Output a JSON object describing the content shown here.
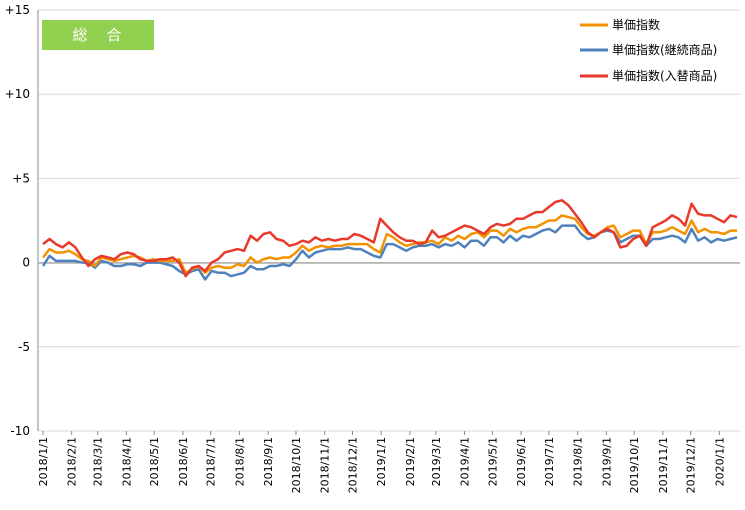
{
  "chart_data": {
    "type": "line",
    "title": "総　合",
    "title_badge_color": "#92d050",
    "ylim": [
      -10,
      15
    ],
    "yticks": [
      {
        "value": 15,
        "label": "+15"
      },
      {
        "value": 10,
        "label": "+10"
      },
      {
        "value": 5,
        "label": "+5"
      },
      {
        "value": 0,
        "label": "0"
      },
      {
        "value": -5,
        "label": "-5"
      },
      {
        "value": -10,
        "label": "-10"
      }
    ],
    "grid": "horizontal",
    "legend_position": "top-right",
    "x_start": "2018-01-01",
    "x_step": "week",
    "x_tick_labels": [
      "2018/1/1",
      "2018/2/1",
      "2018/3/1",
      "2018/4/1",
      "2018/5/1",
      "2018/6/1",
      "2018/7/1",
      "2018/8/1",
      "2018/9/1",
      "2018/10/1",
      "2018/11/1",
      "2018/12/1",
      "2019/1/1",
      "2019/2/1",
      "2019/3/1",
      "2019/4/1",
      "2019/5/1",
      "2019/6/1",
      "2019/7/1",
      "2019/8/1",
      "2019/9/1",
      "2019/10/1",
      "2019/11/1",
      "2019/12/1",
      "2020/1/1"
    ],
    "series": [
      {
        "name": "単価指数",
        "color": "#f39200",
        "values": [
          0.3,
          0.8,
          0.6,
          0.6,
          0.7,
          0.5,
          0.2,
          0.1,
          -0.2,
          0.3,
          0.2,
          0.1,
          0.2,
          0.3,
          0.4,
          0.3,
          0.1,
          0.2,
          0.1,
          0.1,
          0.1,
          0.2,
          -0.6,
          -0.4,
          -0.2,
          -0.6,
          -0.3,
          -0.2,
          -0.3,
          -0.3,
          -0.1,
          -0.2,
          0.3,
          0.0,
          0.2,
          0.3,
          0.2,
          0.3,
          0.3,
          0.6,
          1.0,
          0.7,
          0.9,
          1.0,
          0.9,
          1.0,
          1.0,
          1.1,
          1.1,
          1.1,
          1.1,
          0.8,
          0.6,
          1.7,
          1.5,
          1.2,
          1.0,
          1.1,
          1.2,
          1.2,
          1.3,
          1.1,
          1.5,
          1.3,
          1.6,
          1.4,
          1.7,
          1.8,
          1.5,
          1.9,
          1.9,
          1.6,
          2.0,
          1.8,
          2.0,
          2.1,
          2.1,
          2.3,
          2.5,
          2.5,
          2.8,
          2.7,
          2.6,
          2.1,
          1.7,
          1.6,
          1.8,
          2.1,
          2.2,
          1.5,
          1.7,
          1.9,
          1.9,
          1.1,
          1.8,
          1.8,
          1.9,
          2.1,
          1.9,
          1.7,
          2.5,
          1.8,
          2.0,
          1.8,
          1.8,
          1.7,
          1.9,
          1.9
        ]
      },
      {
        "name": "単価指数(継続商品)",
        "color": "#4f81bd",
        "values": [
          -0.2,
          0.4,
          0.1,
          0.1,
          0.1,
          0.1,
          0.0,
          0.0,
          -0.3,
          0.1,
          0.0,
          -0.2,
          -0.2,
          -0.1,
          -0.1,
          -0.2,
          0.0,
          0.0,
          0.0,
          -0.1,
          -0.2,
          -0.5,
          -0.7,
          -0.5,
          -0.4,
          -1.0,
          -0.5,
          -0.6,
          -0.6,
          -0.8,
          -0.7,
          -0.6,
          -0.2,
          -0.4,
          -0.4,
          -0.2,
          -0.2,
          -0.1,
          -0.2,
          0.2,
          0.7,
          0.3,
          0.6,
          0.7,
          0.8,
          0.8,
          0.8,
          0.9,
          0.8,
          0.8,
          0.6,
          0.4,
          0.3,
          1.1,
          1.1,
          0.9,
          0.7,
          0.9,
          1.0,
          1.0,
          1.1,
          0.9,
          1.1,
          1.0,
          1.2,
          0.9,
          1.3,
          1.3,
          1.0,
          1.5,
          1.5,
          1.2,
          1.6,
          1.3,
          1.6,
          1.5,
          1.7,
          1.9,
          2.0,
          1.8,
          2.2,
          2.2,
          2.2,
          1.7,
          1.4,
          1.5,
          1.8,
          1.9,
          1.8,
          1.2,
          1.4,
          1.6,
          1.6,
          1.0,
          1.4,
          1.4,
          1.5,
          1.6,
          1.5,
          1.2,
          2.0,
          1.3,
          1.5,
          1.2,
          1.4,
          1.3,
          1.4,
          1.5
        ]
      },
      {
        "name": "単価指数(入替商品)",
        "color": "#e8392a",
        "values": [
          1.1,
          1.4,
          1.1,
          0.9,
          1.2,
          0.9,
          0.3,
          -0.2,
          0.2,
          0.4,
          0.3,
          0.2,
          0.5,
          0.6,
          0.5,
          0.2,
          0.1,
          0.1,
          0.2,
          0.2,
          0.3,
          0.0,
          -0.8,
          -0.3,
          -0.2,
          -0.5,
          0.0,
          0.2,
          0.6,
          0.7,
          0.8,
          0.7,
          1.6,
          1.3,
          1.7,
          1.8,
          1.4,
          1.3,
          1.0,
          1.1,
          1.3,
          1.2,
          1.5,
          1.3,
          1.4,
          1.3,
          1.4,
          1.4,
          1.7,
          1.6,
          1.4,
          1.2,
          2.6,
          2.2,
          1.8,
          1.5,
          1.3,
          1.3,
          1.1,
          1.2,
          1.9,
          1.5,
          1.6,
          1.8,
          2.0,
          2.2,
          2.1,
          1.9,
          1.7,
          2.1,
          2.3,
          2.2,
          2.3,
          2.6,
          2.6,
          2.8,
          3.0,
          3.0,
          3.3,
          3.6,
          3.7,
          3.4,
          2.9,
          2.4,
          1.8,
          1.5,
          1.8,
          2.0,
          1.8,
          0.9,
          1.0,
          1.4,
          1.6,
          1.0,
          2.1,
          2.3,
          2.5,
          2.8,
          2.6,
          2.2,
          3.5,
          2.9,
          2.8,
          2.8,
          2.6,
          2.4,
          2.8,
          2.7
        ]
      }
    ]
  }
}
